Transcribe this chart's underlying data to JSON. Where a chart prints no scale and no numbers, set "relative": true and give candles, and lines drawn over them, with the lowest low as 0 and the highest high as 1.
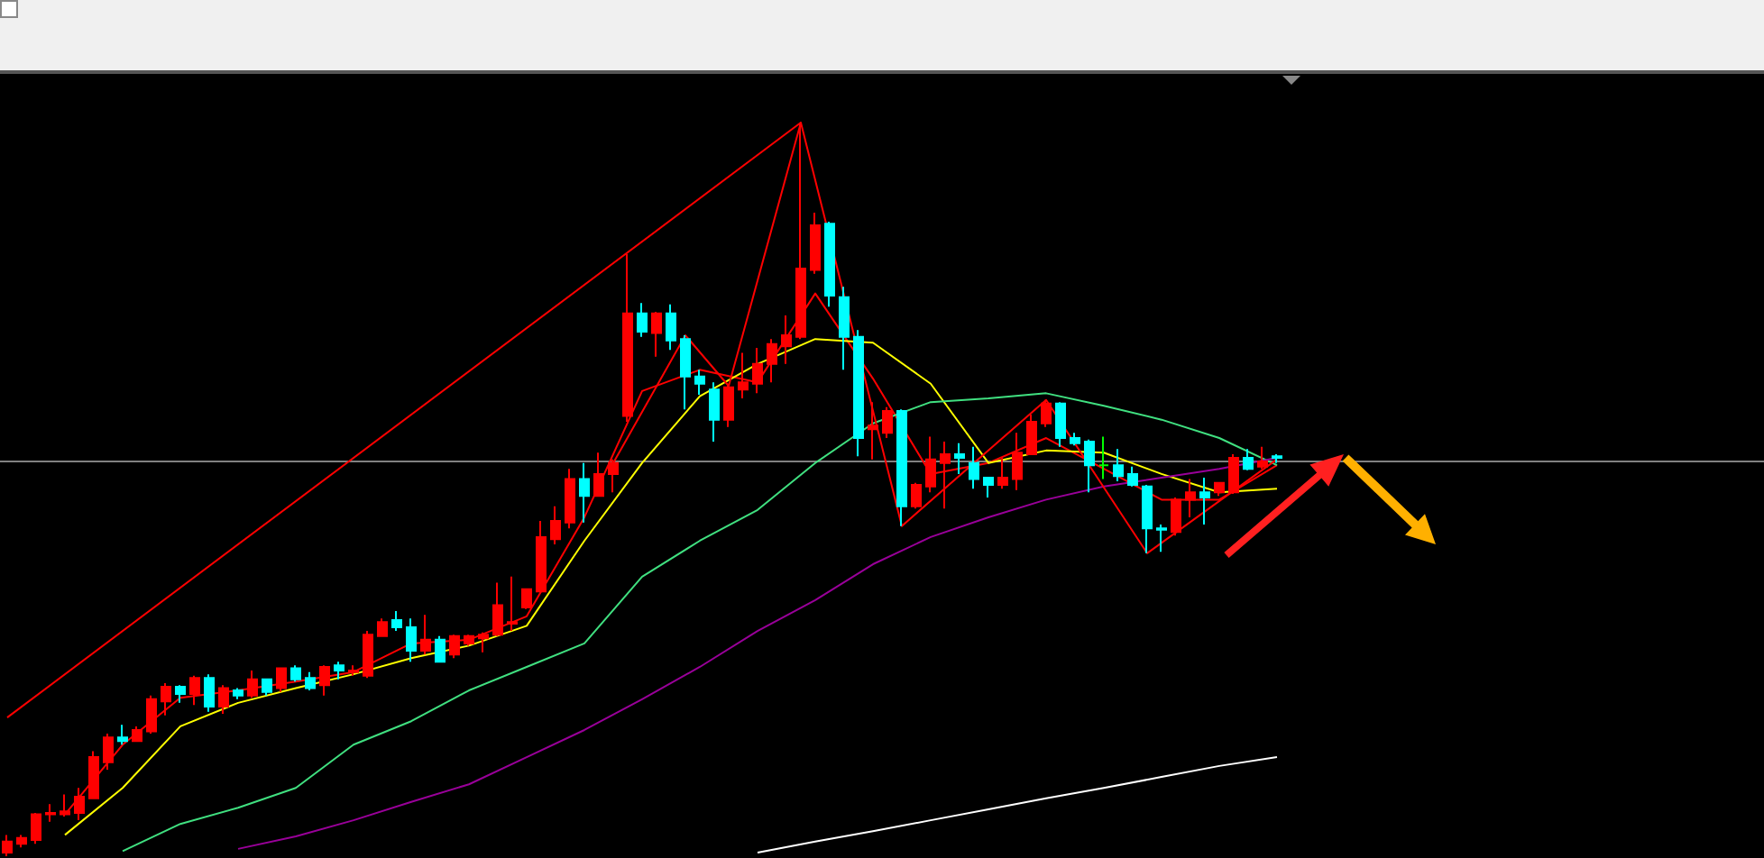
{
  "chart_data": {
    "type": "candlestick",
    "relative": true,
    "categories": [
      null,
      null,
      null,
      null,
      null,
      null,
      null,
      null,
      null,
      null,
      null,
      null,
      null,
      null,
      null,
      null,
      null,
      null,
      null,
      null,
      null,
      null,
      null,
      null,
      null,
      null,
      null,
      null,
      null,
      null,
      null,
      null,
      null,
      null,
      null,
      null,
      null,
      null,
      null,
      null,
      null,
      null,
      null,
      null,
      null,
      null,
      null,
      null,
      null,
      null,
      null,
      null,
      null,
      null,
      null,
      null,
      null,
      null,
      null,
      null,
      null,
      null,
      null,
      null,
      null,
      null,
      null,
      null,
      null,
      null,
      null,
      null,
      null,
      null,
      null,
      null,
      null,
      null,
      null,
      null,
      null,
      null,
      null,
      null,
      null,
      null,
      null,
      null,
      null
    ],
    "ohlc": [
      [
        0.005,
        0.029,
        0,
        0.02
      ],
      [
        0.017,
        0.029,
        0.012,
        0.025
      ],
      [
        0.022,
        0.059,
        0.017,
        0.057
      ],
      [
        0.057,
        0.071,
        0.047,
        0.059
      ],
      [
        0.057,
        0.084,
        0.054,
        0.061
      ],
      [
        0.059,
        0.093,
        0.049,
        0.081
      ],
      [
        0.079,
        0.143,
        0.079,
        0.135
      ],
      [
        0.128,
        0.167,
        0.118,
        0.162
      ],
      [
        0.162,
        0.179,
        0.152,
        0.157
      ],
      [
        0.157,
        0.177,
        0.157,
        0.172
      ],
      [
        0.17,
        0.219,
        0.167,
        0.214
      ],
      [
        0.211,
        0.236,
        0.192,
        0.231
      ],
      [
        0.231,
        0.233,
        0.209,
        0.221
      ],
      [
        0.221,
        0.246,
        0.206,
        0.243
      ],
      [
        0.243,
        0.248,
        0.197,
        0.204
      ],
      [
        0.204,
        0.233,
        0.194,
        0.229
      ],
      [
        0.226,
        0.229,
        0.214,
        0.219
      ],
      [
        0.219,
        0.253,
        0.216,
        0.241
      ],
      [
        0.241,
        0.241,
        0.219,
        0.224
      ],
      [
        0.229,
        0.256,
        0.224,
        0.256
      ],
      [
        0.256,
        0.26,
        0.238,
        0.241
      ],
      [
        0.243,
        0.251,
        0.226,
        0.229
      ],
      [
        0.233,
        0.26,
        0.219,
        0.258
      ],
      [
        0.26,
        0.265,
        0.241,
        0.253
      ],
      [
        0.251,
        0.26,
        0.246,
        0.253
      ],
      [
        0.246,
        0.307,
        0.243,
        0.302
      ],
      [
        0.3,
        0.324,
        0.3,
        0.319
      ],
      [
        0.322,
        0.334,
        0.307,
        0.312
      ],
      [
        0.312,
        0.324,
        0.265,
        0.28
      ],
      [
        0.28,
        0.329,
        0.275,
        0.295
      ],
      [
        0.295,
        0.3,
        0.265,
        0.265
      ],
      [
        0.275,
        0.302,
        0.27,
        0.3
      ],
      [
        0.29,
        0.302,
        0.287,
        0.3
      ],
      [
        0.297,
        0.305,
        0.278,
        0.302
      ],
      [
        0.302,
        0.373,
        0.3,
        0.342
      ],
      [
        0.317,
        0.381,
        0.307,
        0.319
      ],
      [
        0.339,
        0.364,
        0.337,
        0.364
      ],
      [
        0.361,
        0.457,
        0.361,
        0.435
      ],
      [
        0.432,
        0.477,
        0.425,
        0.457
      ],
      [
        0.455,
        0.528,
        0.447,
        0.514
      ],
      [
        0.514,
        0.536,
        0.455,
        0.491
      ],
      [
        0.491,
        0.55,
        0.491,
        0.521
      ],
      [
        0.521,
        0.541,
        0.496,
        0.536
      ],
      [
        0.6,
        0.821,
        0.592,
        0.74
      ],
      [
        0.74,
        0.754,
        0.708,
        0.715
      ],
      [
        0.713,
        0.742,
        0.681,
        0.74
      ],
      [
        0.74,
        0.752,
        0.69,
        0.703
      ],
      [
        0.705,
        0.71,
        0.609,
        0.654
      ],
      [
        0.654,
        0.663,
        0.629,
        0.644
      ],
      [
        0.636,
        0.646,
        0.565,
        0.595
      ],
      [
        0.595,
        0.644,
        0.585,
        0.639
      ],
      [
        0.636,
        0.686,
        0.624,
        0.646
      ],
      [
        0.644,
        0.693,
        0.631,
        0.671
      ],
      [
        0.671,
        0.705,
        0.646,
        0.698
      ],
      [
        0.695,
        0.737,
        0.671,
        0.71
      ],
      [
        0.708,
        1,
        0.705,
        0.801
      ],
      [
        0.799,
        0.877,
        0.794,
        0.86
      ],
      [
        0.862,
        0.865,
        0.749,
        0.764
      ],
      [
        0.762,
        0.776,
        0.663,
        0.708
      ],
      [
        0.708,
        0.717,
        0.545,
        0.57
      ],
      [
        0.582,
        0.619,
        0.541,
        0.587
      ],
      [
        0.577,
        0.612,
        0.57,
        0.607
      ],
      [
        0.607,
        0.609,
        0.45,
        0.477
      ],
      [
        0.477,
        0.509,
        0.474,
        0.506
      ],
      [
        0.504,
        0.572,
        0.496,
        0.541
      ],
      [
        0.536,
        0.565,
        0.474,
        0.548
      ],
      [
        0.548,
        0.563,
        0.521,
        0.543
      ],
      [
        0.536,
        0.558,
        0.501,
        0.514
      ],
      [
        0.516,
        0.516,
        0.489,
        0.506
      ],
      [
        0.506,
        0.543,
        0.501,
        0.516
      ],
      [
        0.514,
        0.577,
        0.499,
        0.55
      ],
      [
        0.548,
        0.602,
        0.548,
        0.592
      ],
      [
        0.59,
        0.622,
        0.585,
        0.617
      ],
      [
        0.617,
        0.619,
        0.558,
        0.57
      ],
      [
        0.57,
        0.577,
        0.56,
        0.563
      ],
      [
        0.565,
        0.568,
        0.496,
        0.533
      ],
      [
        0.533,
        0.572,
        0.514,
        0.533
      ],
      [
        0.533,
        0.555,
        0.511,
        0.518
      ],
      [
        0.521,
        0.531,
        0.504,
        0.506
      ],
      [
        0.504,
        0.506,
        0.413,
        0.447
      ],
      [
        0.447,
        0.452,
        0.415,
        0.445
      ],
      [
        0.442,
        0.489,
        0.437,
        0.486
      ],
      [
        0.486,
        0.514,
        0.462,
        0.496
      ],
      [
        0.496,
        0.516,
        0.452,
        0.489
      ],
      [
        0.496,
        0.509,
        0.491,
        0.509
      ],
      [
        0.496,
        0.548,
        0.494,
        0.543
      ],
      [
        0.543,
        0.555,
        0.526,
        0.528
      ],
      [
        0.531,
        0.558,
        0.528,
        0.538
      ],
      [
        0.545,
        0.548,
        0.536,
        0.543
      ]
    ],
    "colors": [
      "#ff0000",
      "#ff0000",
      "#ff0000",
      "#ff0000",
      "#ff0000",
      "#ff0000",
      "#ff0000",
      "#ff0000",
      "#00ffff",
      "#ff0000",
      "#ff0000",
      "#ff0000",
      "#00ffff",
      "#ff0000",
      "#00ffff",
      "#ff0000",
      "#00ffff",
      "#ff0000",
      "#00ffff",
      "#ff0000",
      "#00ffff",
      "#00ffff",
      "#ff0000",
      "#00ffff",
      "#ff0000",
      "#ff0000",
      "#ff0000",
      "#00ffff",
      "#00ffff",
      "#ff0000",
      "#00ffff",
      "#ff0000",
      "#ff0000",
      "#ff0000",
      "#ff0000",
      "#ff0000",
      "#ff0000",
      "#ff0000",
      "#ff0000",
      "#ff0000",
      "#00ffff",
      "#ff0000",
      "#ff0000",
      "#ff0000",
      "#00ffff",
      "#ff0000",
      "#00ffff",
      "#00ffff",
      "#00ffff",
      "#00ffff",
      "#ff0000",
      "#ff0000",
      "#ff0000",
      "#ff0000",
      "#ff0000",
      "#ff0000",
      "#ff0000",
      "#00ffff",
      "#00ffff",
      "#00ffff",
      "#ff0000",
      "#ff0000",
      "#00ffff",
      "#ff0000",
      "#ff0000",
      "#ff0000",
      "#00ffff",
      "#00ffff",
      "#00ffff",
      "#ff0000",
      "#ff0000",
      "#ff0000",
      "#ff0000",
      "#00ffff",
      "#00ffff",
      "#00ffff",
      "#00ff00",
      "#00ffff",
      "#00ffff",
      "#00ffff",
      "#00ffff",
      "#ff0000",
      "#ff0000",
      "#00ffff",
      "#ff0000",
      "#ff0000",
      "#00ffff",
      "#ff0000",
      "#00ffff"
    ],
    "series": [
      {
        "type": "line",
        "color": "#ff0000",
        "values": [
          null,
          null,
          null,
          null,
          0.057,
          null,
          null,
          null,
          0.152,
          null,
          null,
          null,
          0.216,
          null,
          null,
          null,
          0.226,
          null,
          null,
          null,
          0.238,
          null,
          null,
          null,
          0.251,
          null,
          null,
          null,
          0.29,
          null,
          null,
          null,
          0.295,
          null,
          null,
          null,
          0.327,
          null,
          null,
          null,
          0.462,
          null,
          null,
          null,
          0.634,
          null,
          null,
          null,
          0.663,
          null,
          null,
          null,
          0.646,
          null,
          null,
          null,
          0.767,
          null,
          null,
          null,
          0.651,
          null,
          null,
          null,
          0.521,
          null,
          null,
          null,
          0.536,
          null,
          null,
          null,
          0.57,
          null,
          null,
          null,
          0.528,
          null,
          null,
          null,
          0.486,
          null,
          null,
          null,
          0.486,
          null,
          null,
          null,
          0.533
        ]
      },
      {
        "type": "line",
        "color": "#ffff00",
        "values": [
          null,
          null,
          null,
          null,
          0.029,
          null,
          null,
          null,
          0.093,
          null,
          null,
          null,
          0.177,
          null,
          null,
          null,
          0.209,
          null,
          null,
          null,
          0.229,
          null,
          null,
          null,
          0.248,
          null,
          null,
          null,
          0.27,
          null,
          null,
          null,
          0.287,
          null,
          null,
          null,
          0.314,
          null,
          null,
          null,
          0.43,
          null,
          null,
          null,
          0.536,
          null,
          null,
          null,
          0.627,
          null,
          null,
          null,
          0.671,
          null,
          null,
          null,
          0.705,
          null,
          null,
          null,
          0.7,
          null,
          null,
          null,
          0.644,
          null,
          null,
          null,
          0.536,
          null,
          null,
          null,
          0.553,
          null,
          null,
          null,
          0.55,
          null,
          null,
          null,
          0.521,
          null,
          null,
          null,
          0.496,
          null,
          null,
          null,
          0.501
        ]
      },
      {
        "type": "line",
        "color": "#40e080",
        "values": [
          null,
          null,
          null,
          null,
          null,
          null,
          null,
          null,
          0.007,
          null,
          null,
          null,
          0.044,
          null,
          null,
          null,
          0.066,
          null,
          null,
          null,
          0.093,
          null,
          null,
          null,
          0.152,
          null,
          null,
          null,
          0.184,
          null,
          null,
          null,
          0.226,
          null,
          null,
          null,
          0.258,
          null,
          null,
          null,
          0.29,
          null,
          null,
          null,
          0.381,
          null,
          null,
          null,
          0.43,
          null,
          null,
          null,
          0.472,
          null,
          null,
          null,
          0.536,
          null,
          null,
          null,
          0.59,
          null,
          null,
          null,
          0.619,
          null,
          null,
          null,
          0.624,
          null,
          null,
          null,
          0.631,
          null,
          null,
          null,
          0.614,
          null,
          null,
          null,
          0.595,
          null,
          null,
          null,
          0.57,
          null,
          null,
          null,
          0.533
        ]
      },
      {
        "type": "line",
        "color": "#990099",
        "values": [
          null,
          null,
          null,
          null,
          null,
          null,
          null,
          null,
          null,
          null,
          null,
          null,
          null,
          null,
          null,
          null,
          0.01,
          null,
          null,
          null,
          0.027,
          null,
          null,
          null,
          0.049,
          null,
          null,
          null,
          0.074,
          null,
          null,
          null,
          0.098,
          null,
          null,
          null,
          0.135,
          null,
          null,
          null,
          0.172,
          null,
          null,
          null,
          0.214,
          null,
          null,
          null,
          0.258,
          null,
          null,
          null,
          0.307,
          null,
          null,
          null,
          0.349,
          null,
          null,
          null,
          0.398,
          null,
          null,
          null,
          0.435,
          null,
          null,
          null,
          0.462,
          null,
          null,
          null,
          0.486,
          null,
          null,
          null,
          0.504,
          null,
          null,
          null,
          0.516,
          null,
          null,
          null,
          0.528,
          null,
          null,
          null,
          0.543
        ]
      },
      {
        "type": "line",
        "color": "#ffffff",
        "values": [
          null,
          null,
          null,
          null,
          null,
          null,
          null,
          null,
          null,
          null,
          null,
          null,
          null,
          null,
          null,
          null,
          null,
          null,
          null,
          null,
          null,
          null,
          null,
          null,
          null,
          null,
          null,
          null,
          null,
          null,
          null,
          null,
          null,
          null,
          null,
          null,
          null,
          null,
          null,
          null,
          null,
          null,
          null,
          null,
          null,
          null,
          null,
          null,
          null,
          null,
          null,
          null,
          0.005,
          null,
          null,
          null,
          0.02,
          null,
          null,
          null,
          0.034,
          null,
          null,
          null,
          0.049,
          null,
          null,
          null,
          0.064,
          null,
          null,
          null,
          0.079,
          null,
          null,
          null,
          0.093,
          null,
          null,
          null,
          0.108,
          null,
          null,
          null,
          0.123,
          null,
          null,
          null,
          0.135
        ]
      },
      {
        "type": "line",
        "color": "#ff0000",
        "values": [
          null,
          null,
          null,
          null,
          null,
          null,
          null,
          null,
          null,
          null,
          null,
          null,
          null,
          null,
          null,
          null,
          null,
          null,
          null,
          null,
          null,
          null,
          null,
          null,
          null,
          null,
          null,
          null,
          null,
          null,
          null,
          null,
          null,
          null,
          null,
          null,
          null,
          null,
          null,
          null,
          null,
          null,
          0.536,
          null,
          null,
          null,
          null,
          0.71,
          null,
          null,
          0.641,
          null,
          null,
          null,
          null,
          1,
          null,
          null,
          null,
          null,
          null,
          null,
          0.45,
          null,
          null,
          null,
          null,
          null,
          null,
          null,
          null,
          null,
          0.622,
          null,
          null,
          null,
          null,
          null,
          null,
          0.413,
          null,
          null,
          null,
          null,
          null,
          null,
          null,
          null,
          0.541
        ]
      },
      {
        "type": "line",
        "color": "#ff0000",
        "values": [
          0.189,
          null,
          null,
          null,
          null,
          null,
          null,
          null,
          null,
          null,
          null,
          null,
          null,
          null,
          null,
          null,
          null,
          null,
          null,
          null,
          null,
          null,
          null,
          null,
          null,
          null,
          null,
          null,
          null,
          null,
          null,
          null,
          null,
          null,
          null,
          null,
          null,
          null,
          null,
          null,
          null,
          null,
          null,
          null,
          null,
          null,
          null,
          null,
          null,
          null,
          null,
          null,
          null,
          null,
          null,
          1,
          null,
          null,
          null,
          null,
          null,
          null,
          null,
          null,
          null,
          null,
          null,
          null,
          null,
          null,
          null,
          null,
          null,
          null,
          null,
          null,
          null,
          null,
          null,
          null,
          null,
          null,
          null,
          null,
          null,
          null,
          null,
          null,
          null
        ]
      }
    ],
    "ref_lines": [
      {
        "axis": "y",
        "value": 0.538,
        "color": "#808080"
      }
    ]
  }
}
